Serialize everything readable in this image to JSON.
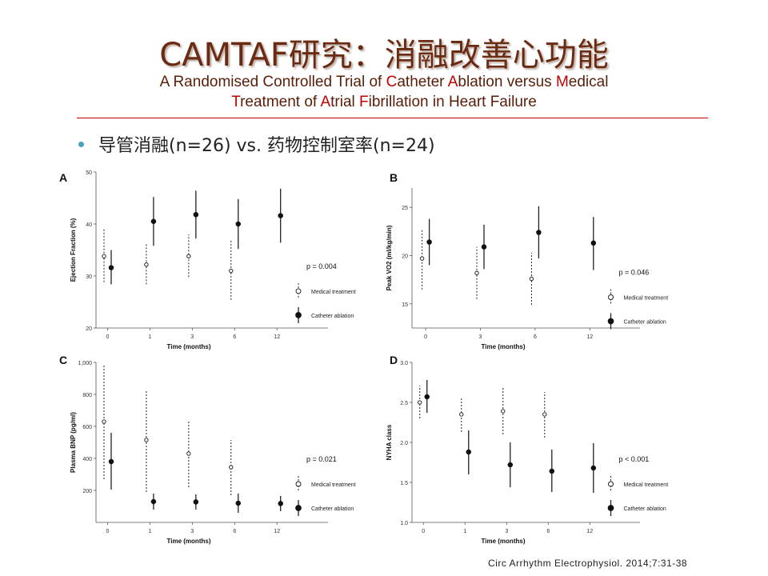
{
  "slide": {
    "title": "CAMTAF研究：消融改善心功能",
    "subtitle_parts": [
      {
        "t": "A Randomised Controlled Trial of ",
        "hl": false
      },
      {
        "t": "C",
        "hl": true
      },
      {
        "t": "atheter ",
        "hl": false
      },
      {
        "t": "A",
        "hl": true
      },
      {
        "t": "blation versus ",
        "hl": false
      },
      {
        "t": "M",
        "hl": true
      },
      {
        "t": "edical",
        "hl": false
      },
      {
        "t": "\n",
        "hl": false
      },
      {
        "t": "T",
        "hl": true
      },
      {
        "t": "reatment of ",
        "hl": false
      },
      {
        "t": "A",
        "hl": true
      },
      {
        "t": "trial ",
        "hl": false
      },
      {
        "t": "F",
        "hl": true
      },
      {
        "t": "ibrillation in Heart Failure",
        "hl": false
      }
    ],
    "bullet": "导管消融(n=26) vs. 药物控制室率(n=24)",
    "citation": "Circ Arrhythm Electrophysiol. 2014;7:31-38",
    "colors": {
      "title": "#6b2a12",
      "highlight": "#c00000",
      "rule": "#c00000",
      "bullet_dot": "#4aa3b8"
    }
  },
  "chart_data": [
    {
      "panel": "A",
      "type": "scatter",
      "xlabel": "Time (months)",
      "ylabel": "Ejection Fraction (%)",
      "categories": [
        "0",
        "1",
        "3",
        "6",
        "12"
      ],
      "ylim": [
        20,
        50
      ],
      "yticks": [
        "20",
        "30",
        "40",
        "50"
      ],
      "p_value": "p = 0.004",
      "legend_position": "right",
      "series": [
        {
          "name": "Medical treatment",
          "marker": "open",
          "style": "dashed",
          "mean": [
            33.8,
            32.2,
            33.8,
            31,
            null
          ],
          "low": [
            28.8,
            28.4,
            29.8,
            25.4,
            null
          ],
          "high": [
            39,
            36.4,
            38,
            36.8,
            null
          ]
        },
        {
          "name": "Catheter ablation",
          "marker": "filled",
          "style": "solid",
          "mean": [
            31.6,
            40.5,
            41.8,
            40,
            41.6
          ],
          "low": [
            28.4,
            35.8,
            37.2,
            35.2,
            36.4
          ],
          "high": [
            35,
            45.2,
            46.4,
            44.8,
            46.8
          ]
        }
      ]
    },
    {
      "panel": "B",
      "type": "scatter",
      "xlabel": "Time (months)",
      "ylabel": "Peak VO2 (ml/kg/min)",
      "categories": [
        "0",
        "3",
        "6",
        "12"
      ],
      "ylim": [
        12.5,
        27
      ],
      "yticks": [
        "15",
        "20",
        "25"
      ],
      "p_value": "p = 0.046",
      "legend_position": "right",
      "series": [
        {
          "name": "Medical treatment",
          "marker": "open",
          "style": "dashed",
          "mean": [
            19.7,
            18.2,
            17.6,
            null
          ],
          "low": [
            16.5,
            15.5,
            14.9,
            null
          ],
          "high": [
            22.8,
            20.9,
            20.3,
            null
          ]
        },
        {
          "name": "Catheter ablation",
          "marker": "filled",
          "style": "solid",
          "mean": [
            21.4,
            20.9,
            22.4,
            21.3
          ],
          "low": [
            19,
            18.6,
            19.7,
            18.5
          ],
          "high": [
            23.8,
            23.2,
            25.1,
            24
          ]
        }
      ]
    },
    {
      "panel": "C",
      "type": "scatter",
      "xlabel": "Time (months)",
      "ylabel": "Plasma BNP (pg/ml)",
      "categories": [
        "0",
        "1",
        "3",
        "6",
        "12"
      ],
      "ylim": [
        0,
        1000
      ],
      "yticks": [
        "200",
        "400",
        "600",
        "800",
        "1,000"
      ],
      "p_value": "p = 0.021",
      "legend_position": "right",
      "series": [
        {
          "name": "Medical treatment",
          "marker": "open",
          "style": "dashed",
          "mean": [
            630,
            515,
            430,
            345,
            null
          ],
          "low": [
            270,
            190,
            220,
            170,
            null
          ],
          "high": [
            990,
            830,
            635,
            515,
            null
          ]
        },
        {
          "name": "Catheter ablation",
          "marker": "filled",
          "style": "solid",
          "mean": [
            380,
            130,
            128,
            120,
            118
          ],
          "low": [
            205,
            80,
            80,
            60,
            70
          ],
          "high": [
            560,
            180,
            175,
            180,
            165
          ]
        }
      ]
    },
    {
      "panel": "D",
      "type": "scatter",
      "xlabel": "Time (months)",
      "ylabel": "NYHA class",
      "categories": [
        "0",
        "1",
        "3",
        "6",
        "12"
      ],
      "ylim": [
        1,
        3
      ],
      "yticks": [
        "1.0",
        "1.5",
        "2.0",
        "2.5",
        "3.0"
      ],
      "p_value": "p < 0.001",
      "legend_position": "right",
      "series": [
        {
          "name": "Medical treatment",
          "marker": "open",
          "style": "dashed",
          "mean": [
            2.5,
            2.35,
            2.39,
            2.35,
            null
          ],
          "low": [
            2.3,
            2.13,
            2.1,
            2.06,
            null
          ],
          "high": [
            2.71,
            2.56,
            2.68,
            2.63,
            null
          ]
        },
        {
          "name": "Catheter ablation",
          "marker": "filled",
          "style": "solid",
          "mean": [
            2.57,
            1.88,
            1.72,
            1.64,
            1.68
          ],
          "low": [
            2.37,
            1.6,
            1.44,
            1.38,
            1.37
          ],
          "high": [
            2.78,
            2.15,
            2.0,
            1.91,
            1.99
          ]
        }
      ]
    }
  ]
}
